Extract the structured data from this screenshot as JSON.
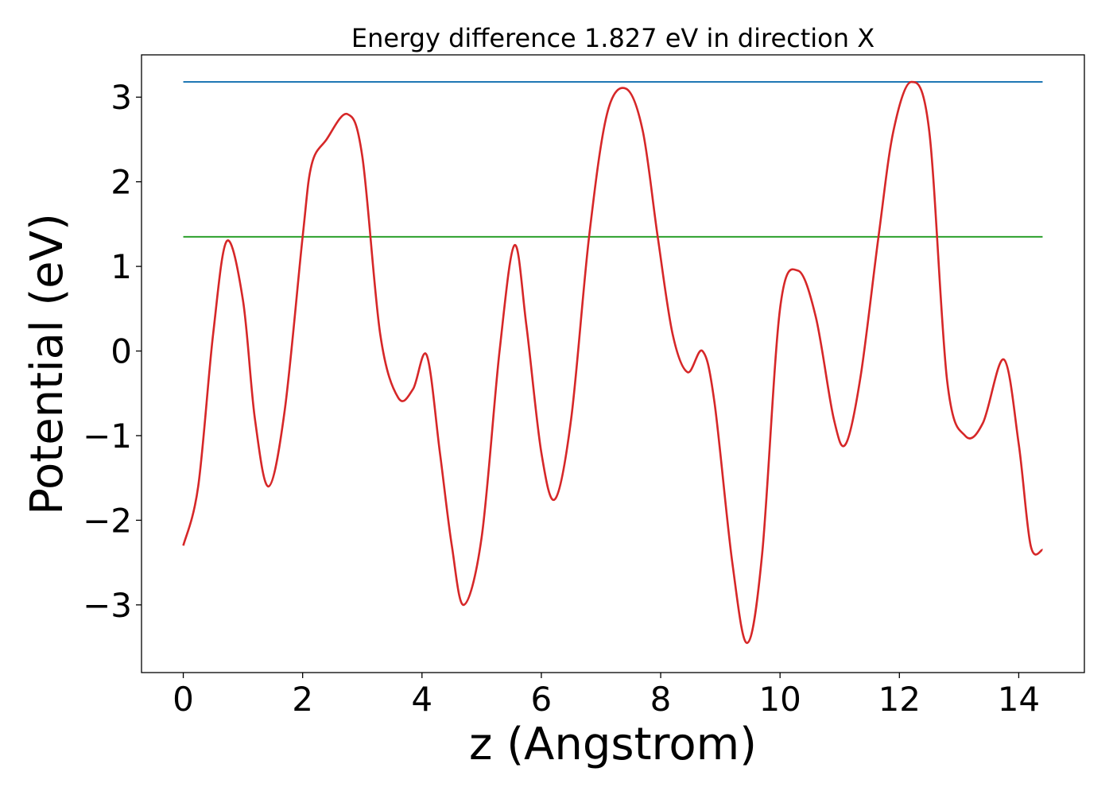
{
  "chart_data": {
    "type": "line",
    "title": "Energy difference 1.827 eV in direction X",
    "xlabel": "z (Angstrom)",
    "ylabel": "Potential (eV)",
    "xlim": [
      -0.7,
      15.1
    ],
    "ylim": [
      -3.8,
      3.5
    ],
    "xticks": [
      0,
      2,
      4,
      6,
      8,
      10,
      12,
      14
    ],
    "yticks": [
      -3,
      -2,
      -1,
      0,
      1,
      2,
      3
    ],
    "xtick_labels": [
      "0",
      "2",
      "4",
      "6",
      "8",
      "10",
      "12",
      "14"
    ],
    "ytick_labels": [
      "−3",
      "−2",
      "−1",
      "0",
      "1",
      "2",
      "3"
    ],
    "grid": false,
    "series": [
      {
        "color": "#1f77b4",
        "x": [
          0,
          14.4
        ],
        "y": [
          3.18,
          3.18
        ]
      },
      {
        "color": "#2ca02c",
        "x": [
          0,
          14.4
        ],
        "y": [
          1.35,
          1.35
        ]
      },
      {
        "color": "#d62728",
        "x": [
          0,
          0.25,
          0.5,
          0.73,
          1.0,
          1.2,
          1.43,
          1.7,
          2.0,
          2.15,
          2.4,
          2.75,
          3.0,
          3.3,
          3.6,
          3.85,
          4.08,
          4.3,
          4.5,
          4.7,
          5.0,
          5.3,
          5.55,
          5.75,
          6.0,
          6.23,
          6.5,
          6.8,
          7.1,
          7.42,
          7.7,
          7.95,
          8.2,
          8.45,
          8.7,
          8.9,
          9.2,
          9.45,
          9.7,
          10.0,
          10.3,
          10.6,
          10.9,
          11.1,
          11.35,
          11.65,
          11.9,
          12.2,
          12.5,
          12.8,
          13.1,
          13.4,
          13.75,
          14.0,
          14.2,
          14.4
        ],
        "y": [
          -2.3,
          -1.6,
          0.2,
          1.3,
          0.6,
          -0.8,
          -1.6,
          -0.7,
          1.35,
          2.2,
          2.5,
          2.8,
          2.3,
          0.2,
          -0.55,
          -0.45,
          -0.05,
          -1.2,
          -2.3,
          -3.0,
          -2.2,
          0.0,
          1.25,
          0.3,
          -1.2,
          -1.75,
          -0.8,
          1.35,
          2.8,
          3.1,
          2.6,
          1.35,
          0.2,
          -0.25,
          0.0,
          -0.6,
          -2.5,
          -3.45,
          -2.4,
          0.5,
          0.95,
          0.4,
          -0.8,
          -1.1,
          -0.3,
          1.35,
          2.6,
          3.18,
          2.6,
          -0.35,
          -1.0,
          -0.85,
          -0.1,
          -1.1,
          -2.3,
          -2.35
        ]
      }
    ]
  }
}
